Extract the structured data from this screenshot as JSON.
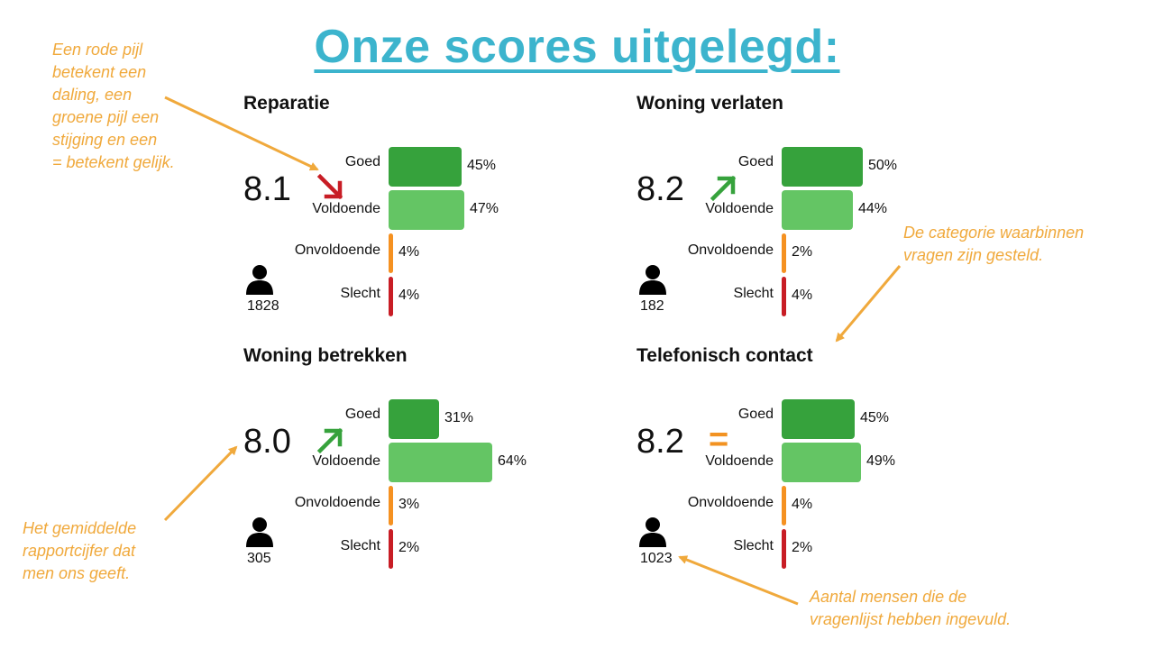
{
  "title": "Onze scores uitgelegd:",
  "colors": {
    "title": "#3cb4cd",
    "annotation": "#f0a93c",
    "goed": "#36a23c",
    "voldoende": "#64c564",
    "onvoldoende": "#f59121",
    "slecht": "#c81d25",
    "trend_up": "#36a23c",
    "trend_down": "#c81d25",
    "trend_equal": "#f29221"
  },
  "icons": {
    "trend_up": "arrow-up-right-icon",
    "trend_down": "arrow-down-right-icon",
    "trend_equal": "equal-sign-icon",
    "respondents": "person-icon"
  },
  "chart_data": [
    {
      "type": "bar",
      "title": "Reparatie",
      "score": "8.1",
      "trend": "down",
      "respondents": "1828",
      "categories": [
        "Goed",
        "Voldoende",
        "Onvoldoende",
        "Slecht"
      ],
      "values": [
        45,
        47,
        4,
        4
      ],
      "labels": [
        "45%",
        "47%",
        "4%",
        "4%"
      ]
    },
    {
      "type": "bar",
      "title": "Woning verlaten",
      "score": "8.2",
      "trend": "up",
      "respondents": "182",
      "categories": [
        "Goed",
        "Voldoende",
        "Onvoldoende",
        "Slecht"
      ],
      "values": [
        50,
        44,
        2,
        4
      ],
      "labels": [
        "50%",
        "44%",
        "2%",
        "4%"
      ]
    },
    {
      "type": "bar",
      "title": "Woning betrekken",
      "score": "8.0",
      "trend": "up",
      "respondents": "305",
      "categories": [
        "Goed",
        "Voldoende",
        "Onvoldoende",
        "Slecht"
      ],
      "values": [
        31,
        64,
        3,
        2
      ],
      "labels": [
        "31%",
        "64%",
        "3%",
        "2%"
      ]
    },
    {
      "type": "bar",
      "title": "Telefonisch contact",
      "score": "8.2",
      "trend": "equal",
      "trend_symbol": "=",
      "respondents": "1023",
      "categories": [
        "Goed",
        "Voldoende",
        "Onvoldoende",
        "Slecht"
      ],
      "values": [
        45,
        49,
        4,
        2
      ],
      "labels": [
        "45%",
        "49%",
        "4%",
        "2%"
      ]
    }
  ],
  "annotations": {
    "trend": [
      "Een rode pijl",
      "betekent een",
      "daling, een",
      "groene pijl een",
      "stijging en een",
      "= betekent gelijk."
    ],
    "category": [
      "De categorie waarbinnen",
      "vragen zijn gesteld."
    ],
    "average": [
      "Het gemiddelde",
      "rapportcijfer dat",
      "men ons geeft."
    ],
    "respondents": [
      "Aantal mensen die de",
      "vragenlijst hebben ingevuld."
    ]
  }
}
